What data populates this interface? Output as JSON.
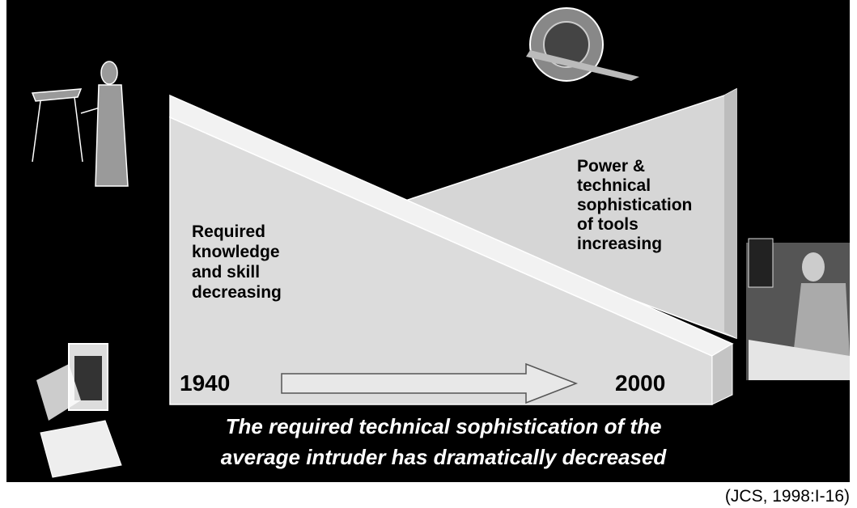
{
  "left_label": [
    "Required",
    "knowledge",
    "and skill",
    "decreasing"
  ],
  "right_label": [
    "Power &",
    "technical",
    "sophistication",
    "of tools",
    "increasing"
  ],
  "start_year": "1940",
  "end_year": "2000",
  "caption": [
    "The required technical sophistication of the",
    "average intruder has dramatically decreased"
  ],
  "source": "(JCS, 1998:I-16)"
}
